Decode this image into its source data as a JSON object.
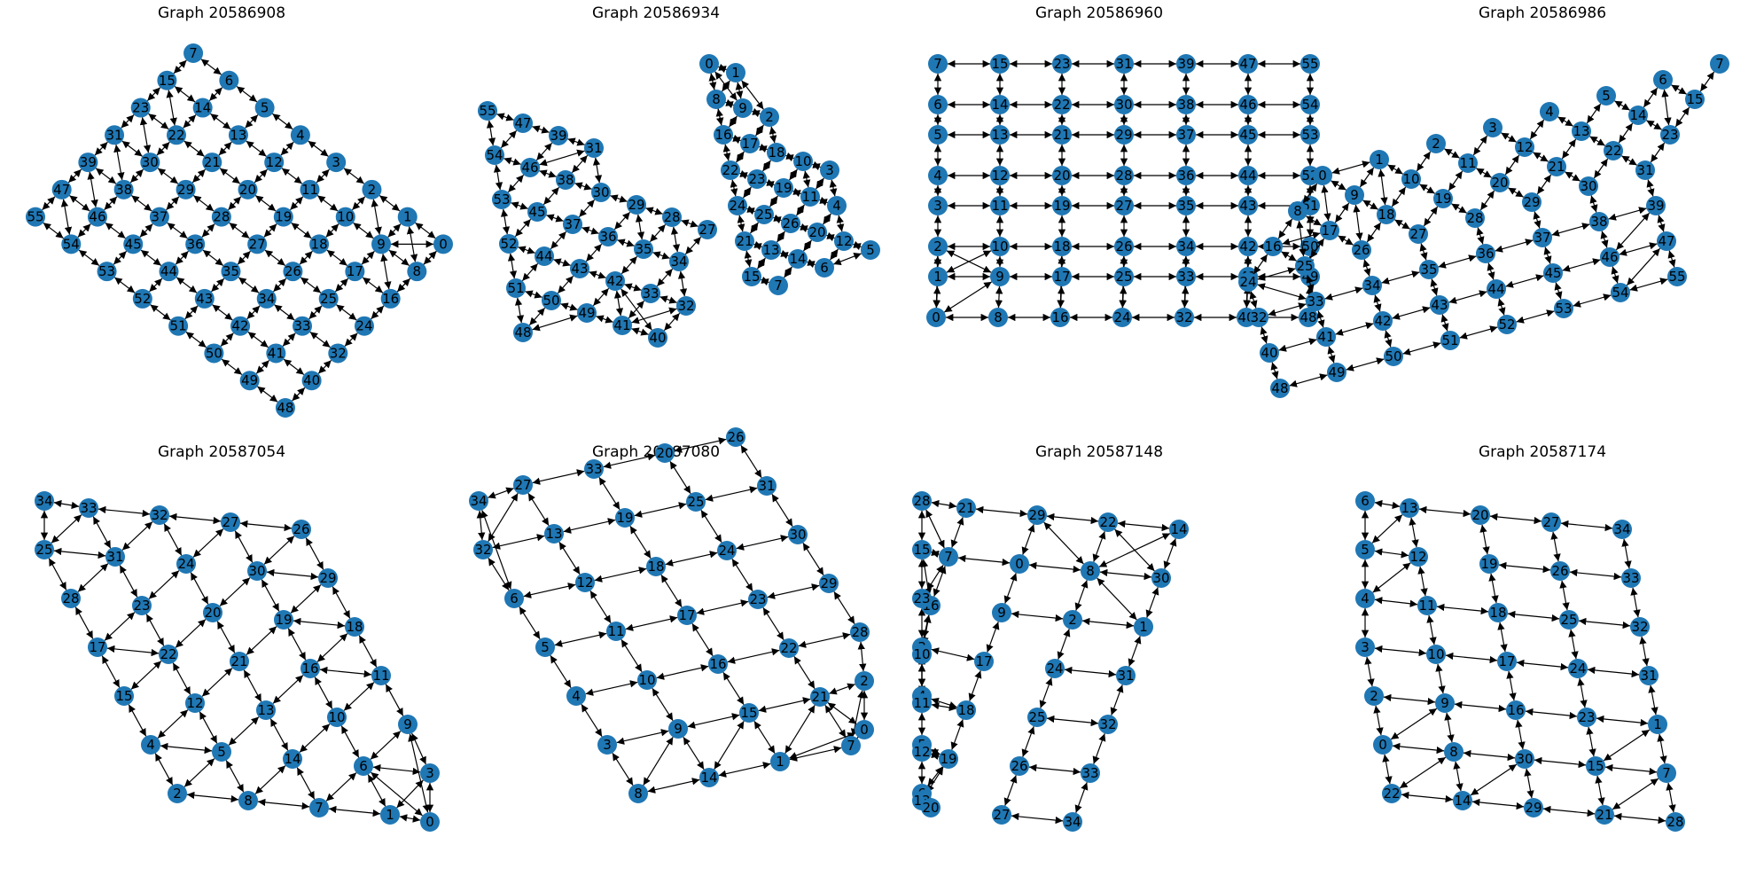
{
  "figure": {
    "panels": [
      {
        "title": "Graph 20586908",
        "layout": "diamond",
        "order": [
          "7",
          "6",
          "5",
          "4",
          "3",
          "2",
          "1",
          "0",
          "15",
          "14",
          "13",
          "12",
          "11",
          "10",
          "9",
          "8",
          "23",
          "22",
          "21",
          "20",
          "19",
          "18",
          "17",
          "16",
          "31",
          "30",
          "29",
          "28",
          "27",
          "26",
          "25",
          "24",
          "39",
          "38",
          "37",
          "36",
          "35",
          "34",
          "33",
          "32",
          "47",
          "46",
          "45",
          "44",
          "43",
          "42",
          "41",
          "40",
          "55",
          "54",
          "53",
          "52",
          "51",
          "50",
          "49",
          "48"
        ]
      },
      {
        "title": "Graph 20586934",
        "layout": "twoClusters",
        "left": [
          "55",
          "47",
          "39",
          "31",
          "30",
          "29",
          "28",
          "27",
          "54",
          "46",
          "38",
          "37",
          "36",
          "35",
          "34",
          "53",
          "45",
          "44",
          "43",
          "42",
          "33",
          "32",
          "52",
          "51",
          "50",
          "49",
          "41",
          "40",
          "48"
        ],
        "right": [
          "0",
          "1",
          "8",
          "9",
          "2",
          "16",
          "17",
          "18",
          "10",
          "11",
          "3",
          "4",
          "22",
          "23",
          "19",
          "12",
          "13",
          "5",
          "24",
          "25",
          "26",
          "20",
          "21",
          "14",
          "6",
          "15",
          "7"
        ]
      },
      {
        "title": "Graph 20586960",
        "layout": "square",
        "order": [
          "7",
          "15",
          "23",
          "31",
          "39",
          "47",
          "55",
          "6",
          "14",
          "22",
          "30",
          "38",
          "46",
          "54",
          "5",
          "13",
          "21",
          "29",
          "37",
          "45",
          "53",
          "4",
          "12",
          "20",
          "28",
          "36",
          "44",
          "52",
          "3",
          "11",
          "19",
          "27",
          "35",
          "43",
          "51",
          "2",
          "10",
          "18",
          "26",
          "34",
          "42",
          "50",
          "1",
          "9",
          "17",
          "25",
          "33",
          "41",
          "49",
          "0",
          "8",
          "16",
          "24",
          "32",
          "40",
          "48"
        ]
      },
      {
        "title": "Graph 20586986",
        "layout": "folded",
        "order": [
          "7",
          "6",
          "5",
          "4",
          "3",
          "2",
          "1",
          "0",
          "15",
          "14",
          "13",
          "12",
          "11",
          "10",
          "9",
          "8",
          "23",
          "22",
          "21",
          "20",
          "19",
          "18",
          "17",
          "16",
          "31",
          "30",
          "29",
          "28",
          "27",
          "26",
          "25",
          "24",
          "39",
          "38",
          "37",
          "36",
          "35",
          "34",
          "33",
          "32",
          "47",
          "46",
          "45",
          "44",
          "43",
          "42",
          "41",
          "40",
          "55",
          "54",
          "53",
          "52",
          "51",
          "50",
          "49",
          "48"
        ]
      },
      {
        "title": "Graph 20587054",
        "layout": "scattered",
        "order": [
          "34",
          "33",
          "32",
          "27",
          "26",
          "25",
          "31",
          "24",
          "30",
          "29",
          "28",
          "23",
          "20",
          "19",
          "18",
          "17",
          "22",
          "21",
          "16",
          "11",
          "15",
          "12",
          "13",
          "10",
          "9",
          "4",
          "5",
          "14",
          "6",
          "3",
          "2",
          "8",
          "7",
          "1",
          "0"
        ]
      },
      {
        "title": "Graph 20587080",
        "layout": "slanted",
        "order": [
          "34",
          "27",
          "33",
          "20",
          "26",
          "32",
          "13",
          "19",
          "25",
          "31",
          "6",
          "12",
          "18",
          "24",
          "30",
          "5",
          "11",
          "17",
          "23",
          "29",
          "4",
          "10",
          "16",
          "22",
          "28",
          "3",
          "9",
          "15",
          "21",
          "2",
          "8",
          "14",
          "1",
          "7",
          "0"
        ]
      },
      {
        "title": "Graph 20587148",
        "layout": "zigzag",
        "order": [
          "28",
          "21",
          "29",
          "22",
          "14",
          "15",
          "7",
          "0",
          "8",
          "30",
          "23",
          "16",
          "9",
          "2",
          "1",
          "3",
          "10",
          "17",
          "24",
          "31",
          "4",
          "11",
          "18",
          "25",
          "32",
          "5",
          "12",
          "19",
          "26",
          "33",
          "6",
          "13",
          "20",
          "27",
          "34"
        ]
      },
      {
        "title": "Graph 20587174",
        "layout": "lshape",
        "order": [
          "6",
          "13",
          "20",
          "27",
          "34",
          "5",
          "12",
          "19",
          "26",
          "33",
          "4",
          "11",
          "18",
          "25",
          "32",
          "3",
          "10",
          "17",
          "24",
          "31",
          "2",
          "9",
          "16",
          "23",
          "1",
          "0",
          "8",
          "30",
          "15",
          "7",
          "22",
          "14",
          "29",
          "21",
          "28"
        ]
      }
    ]
  }
}
